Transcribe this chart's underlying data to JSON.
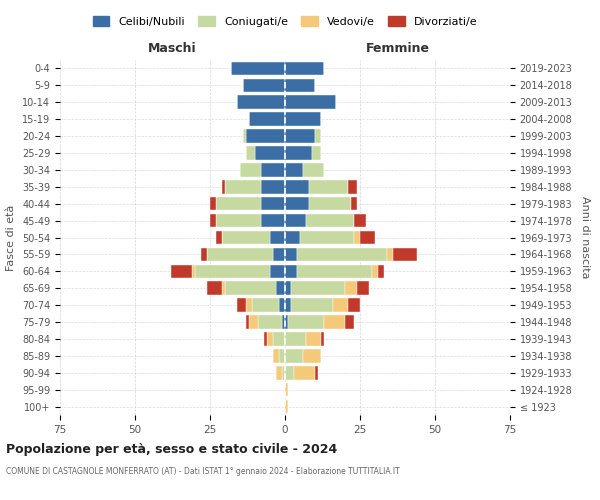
{
  "age_groups": [
    "100+",
    "95-99",
    "90-94",
    "85-89",
    "80-84",
    "75-79",
    "70-74",
    "65-69",
    "60-64",
    "55-59",
    "50-54",
    "45-49",
    "40-44",
    "35-39",
    "30-34",
    "25-29",
    "20-24",
    "15-19",
    "10-14",
    "5-9",
    "0-4"
  ],
  "birth_years": [
    "≤ 1923",
    "1924-1928",
    "1929-1933",
    "1934-1938",
    "1939-1943",
    "1944-1948",
    "1949-1953",
    "1954-1958",
    "1959-1963",
    "1964-1968",
    "1969-1973",
    "1974-1978",
    "1979-1983",
    "1984-1988",
    "1989-1993",
    "1994-1998",
    "1999-2003",
    "2004-2008",
    "2009-2013",
    "2014-2018",
    "2019-2023"
  ],
  "colors": {
    "celibi": "#3a6ea5",
    "coniugati": "#c5d9a0",
    "vedovi": "#f5c97a",
    "divorziati": "#c0392b"
  },
  "maschi": {
    "celibi": [
      0,
      0,
      0,
      0,
      0,
      1,
      2,
      3,
      5,
      4,
      5,
      8,
      8,
      8,
      8,
      10,
      13,
      12,
      16,
      14,
      18
    ],
    "coniugati": [
      0,
      0,
      1,
      2,
      4,
      8,
      9,
      17,
      25,
      22,
      16,
      15,
      15,
      12,
      7,
      3,
      1,
      0,
      0,
      0,
      0
    ],
    "vedovi": [
      0,
      0,
      2,
      2,
      2,
      3,
      2,
      1,
      1,
      0,
      0,
      0,
      0,
      0,
      0,
      0,
      0,
      0,
      0,
      0,
      0
    ],
    "divorziati": [
      0,
      0,
      0,
      0,
      1,
      1,
      3,
      5,
      7,
      2,
      2,
      2,
      2,
      1,
      0,
      0,
      0,
      0,
      0,
      0,
      0
    ]
  },
  "femmine": {
    "celibi": [
      0,
      0,
      0,
      0,
      0,
      1,
      2,
      2,
      4,
      4,
      5,
      7,
      8,
      8,
      6,
      9,
      10,
      12,
      17,
      10,
      13
    ],
    "coniugati": [
      0,
      0,
      3,
      6,
      7,
      12,
      14,
      18,
      25,
      30,
      18,
      16,
      14,
      13,
      7,
      3,
      2,
      0,
      0,
      0,
      0
    ],
    "vedovi": [
      1,
      1,
      7,
      6,
      5,
      7,
      5,
      4,
      2,
      2,
      2,
      0,
      0,
      0,
      0,
      0,
      0,
      0,
      0,
      0,
      0
    ],
    "divorziati": [
      0,
      0,
      1,
      0,
      1,
      3,
      4,
      4,
      2,
      8,
      5,
      4,
      2,
      3,
      0,
      0,
      0,
      0,
      0,
      0,
      0
    ]
  },
  "title": "Popolazione per età, sesso e stato civile - 2024",
  "subtitle": "COMUNE DI CASTAGNOLE MONFERRATO (AT) - Dati ISTAT 1° gennaio 2024 - Elaborazione TUTTITALIA.IT",
  "xlabel_left": "Maschi",
  "xlabel_right": "Femmine",
  "ylabel_left": "Fasce di età",
  "ylabel_right": "Anni di nascita",
  "xlim": 75,
  "legend_labels": [
    "Celibi/Nubili",
    "Coniugati/e",
    "Vedovi/e",
    "Divorziati/e"
  ],
  "bg_color": "#ffffff",
  "grid_color": "#cccccc"
}
